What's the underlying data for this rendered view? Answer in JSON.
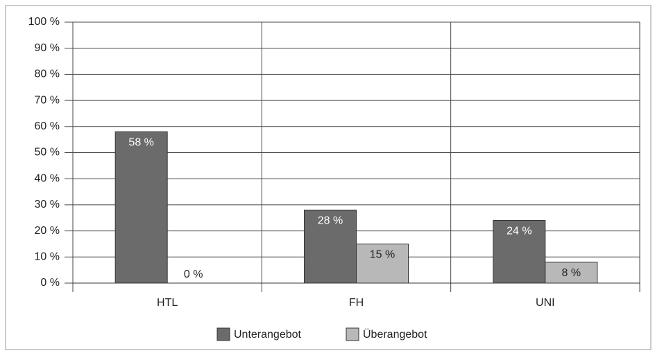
{
  "chart_data": {
    "type": "bar",
    "categories": [
      "HTL",
      "FH",
      "UNI"
    ],
    "series": [
      {
        "name": "Unterangebot",
        "color": "#6b6b6b",
        "values": [
          58,
          28,
          24
        ],
        "value_labels": [
          "58 %",
          "28 %",
          "24 %"
        ]
      },
      {
        "name": "Überangebot",
        "color": "#b8b8b8",
        "values": [
          0,
          15,
          8
        ],
        "value_labels": [
          "0 %",
          "15 %",
          "8 %"
        ]
      }
    ],
    "ylim": [
      0,
      100
    ],
    "yticks": [
      {
        "value": 0,
        "label": "0 %"
      },
      {
        "value": 10,
        "label": "10 %"
      },
      {
        "value": 20,
        "label": "20 %"
      },
      {
        "value": 30,
        "label": "30 %"
      },
      {
        "value": 40,
        "label": "40 %"
      },
      {
        "value": 50,
        "label": "50 %"
      },
      {
        "value": 60,
        "label": "60 %"
      },
      {
        "value": 70,
        "label": "70 %"
      },
      {
        "value": 80,
        "label": "80 %"
      },
      {
        "value": 90,
        "label": "90 %"
      },
      {
        "value": 100,
        "label": "100 %"
      }
    ],
    "grid": true,
    "legend": "bottom"
  }
}
